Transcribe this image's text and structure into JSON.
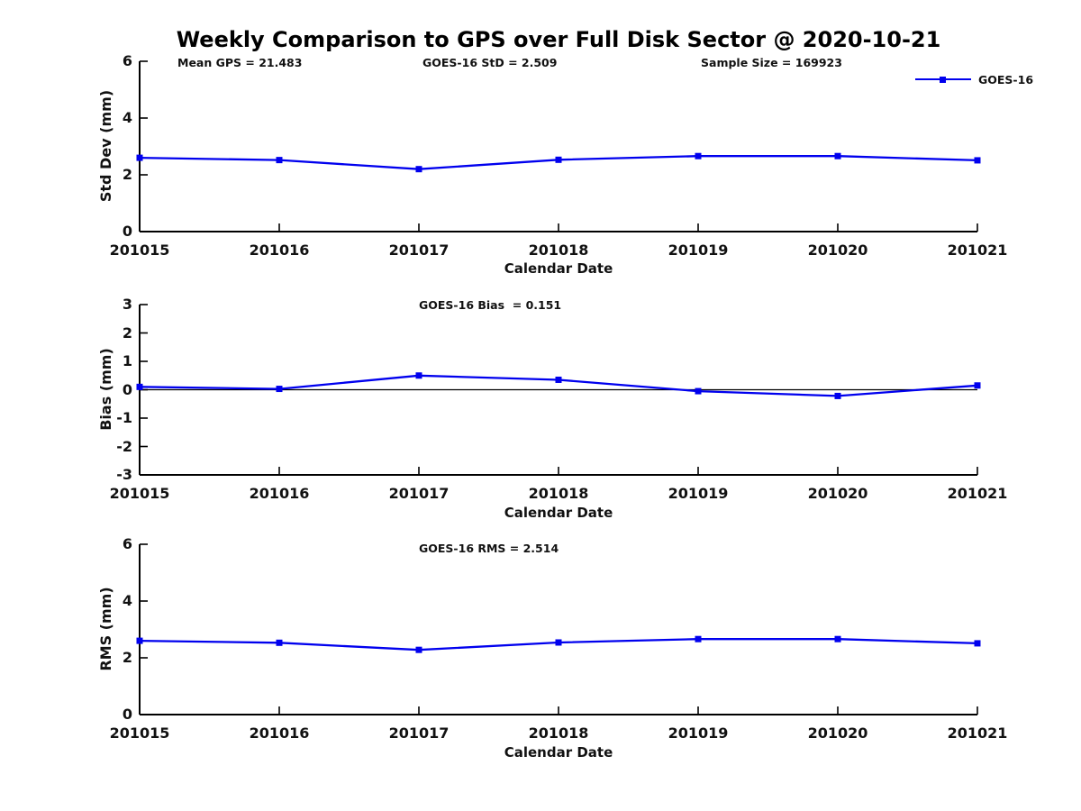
{
  "title": "Weekly Comparison to GPS over Full Disk Sector @ 2020-10-21",
  "accent_color": "#0000EE",
  "text_color": "#111111",
  "legend": {
    "label": "GOES-16"
  },
  "chart_data": [
    {
      "type": "line",
      "subplot": "std-dev",
      "annotations": [
        "Mean GPS = 21.483",
        "GOES-16 StD = 2.509",
        "Sample Size = 169923"
      ],
      "xlabel": "Calendar Date",
      "ylabel": "Std Dev (mm)",
      "categories": [
        "201015",
        "201016",
        "201017",
        "201018",
        "201019",
        "201020",
        "201021"
      ],
      "series": [
        {
          "name": "GOES-16",
          "values": [
            2.6,
            2.52,
            2.2,
            2.53,
            2.66,
            2.66,
            2.51
          ]
        }
      ],
      "ylim": [
        0,
        6
      ],
      "yticks": [
        0,
        2,
        4,
        6
      ],
      "grid": false,
      "legend_position": "top-right"
    },
    {
      "type": "line",
      "subplot": "bias",
      "annotations": [
        "GOES-16 Bias  = 0.151"
      ],
      "xlabel": "Calendar Date",
      "ylabel": "Bias (mm)",
      "categories": [
        "201015",
        "201016",
        "201017",
        "201018",
        "201019",
        "201020",
        "201021"
      ],
      "series": [
        {
          "name": "GOES-16",
          "values": [
            0.1,
            0.03,
            0.5,
            0.35,
            -0.05,
            -0.22,
            0.15
          ]
        }
      ],
      "ylim": [
        -3,
        3
      ],
      "yticks": [
        -3,
        -2,
        -1,
        0,
        1,
        2,
        3
      ],
      "zero_line": true,
      "grid": false
    },
    {
      "type": "line",
      "subplot": "rms",
      "annotations": [
        "GOES-16 RMS = 2.514"
      ],
      "xlabel": "Calendar Date",
      "ylabel": "RMS (mm)",
      "categories": [
        "201015",
        "201016",
        "201017",
        "201018",
        "201019",
        "201020",
        "201021"
      ],
      "series": [
        {
          "name": "GOES-16",
          "values": [
            2.6,
            2.53,
            2.28,
            2.54,
            2.66,
            2.66,
            2.51
          ]
        }
      ],
      "ylim": [
        0,
        6
      ],
      "yticks": [
        0,
        2,
        4,
        6
      ],
      "grid": false
    }
  ]
}
